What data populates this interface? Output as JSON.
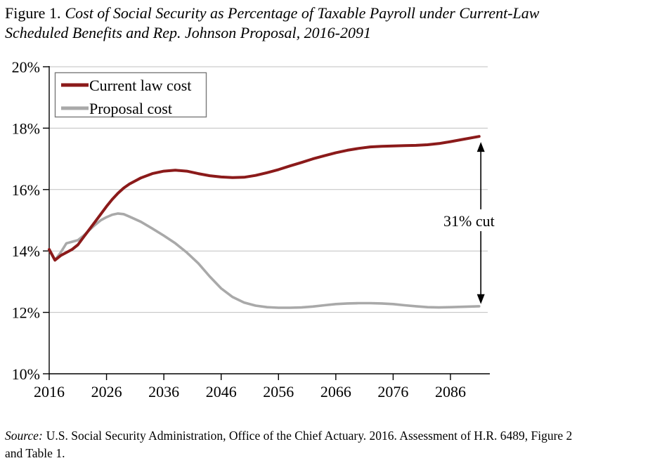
{
  "figure": {
    "title_prefix": "Figure 1.",
    "title_italic_line1": "Cost of Social Security as Percentage of Taxable Payroll under Current-Law",
    "title_italic_line2": "Scheduled Benefits and Rep. Johnson Proposal, 2016-2091",
    "source_prefix": "Source:",
    "source_line1": "U.S. Social Security Administration, Office of the Chief Actuary. 2016. Assessment of H.R. 6489, Figure 2",
    "source_line2": "and Table 1."
  },
  "chart_data": {
    "type": "line",
    "title": "Cost of Social Security as Percentage of Taxable Payroll under Current-Law Scheduled Benefits and Rep. Johnson Proposal, 2016-2091",
    "xlabel": "",
    "ylabel": "",
    "xlim": [
      2016,
      2092.5
    ],
    "ylim": [
      10,
      20
    ],
    "grid": "horizontal",
    "legend_position": "top-left",
    "x_ticks": [
      {
        "value": 2016,
        "label": "2016"
      },
      {
        "value": 2026,
        "label": "2026"
      },
      {
        "value": 2036,
        "label": "2036"
      },
      {
        "value": 2046,
        "label": "2046"
      },
      {
        "value": 2056,
        "label": "2056"
      },
      {
        "value": 2066,
        "label": "2066"
      },
      {
        "value": 2076,
        "label": "2076"
      },
      {
        "value": 2086,
        "label": "2086"
      }
    ],
    "y_ticks": [
      {
        "value": 20,
        "label": "20%"
      },
      {
        "value": 18,
        "label": "18%"
      },
      {
        "value": 16,
        "label": "16%"
      },
      {
        "value": 14,
        "label": "14%"
      },
      {
        "value": 12,
        "label": "12%"
      },
      {
        "value": 10,
        "label": "10%"
      }
    ],
    "x": [
      2016,
      2017,
      2018,
      2019,
      2020,
      2021,
      2022,
      2023,
      2024,
      2025,
      2026,
      2027,
      2028,
      2029,
      2030,
      2032,
      2034,
      2036,
      2038,
      2040,
      2042,
      2044,
      2046,
      2048,
      2050,
      2052,
      2054,
      2056,
      2058,
      2060,
      2062,
      2064,
      2066,
      2068,
      2070,
      2072,
      2074,
      2076,
      2078,
      2080,
      2082,
      2084,
      2086,
      2088,
      2091
    ],
    "series": [
      {
        "name": "Current law cost",
        "color": "#8b1a1a",
        "values": [
          14.05,
          13.7,
          13.85,
          13.95,
          14.05,
          14.2,
          14.45,
          14.7,
          14.95,
          15.2,
          15.45,
          15.68,
          15.88,
          16.05,
          16.18,
          16.38,
          16.52,
          16.6,
          16.63,
          16.6,
          16.52,
          16.45,
          16.41,
          16.39,
          16.4,
          16.46,
          16.55,
          16.65,
          16.77,
          16.88,
          17.0,
          17.1,
          17.2,
          17.28,
          17.34,
          17.39,
          17.41,
          17.42,
          17.43,
          17.44,
          17.46,
          17.5,
          17.56,
          17.63,
          17.73
        ]
      },
      {
        "name": "Proposal cost",
        "color": "#a9a9a9",
        "values": [
          14.05,
          13.7,
          13.95,
          14.25,
          14.3,
          14.35,
          14.5,
          14.68,
          14.85,
          15.0,
          15.1,
          15.18,
          15.22,
          15.2,
          15.12,
          14.95,
          14.73,
          14.5,
          14.25,
          13.95,
          13.6,
          13.17,
          12.78,
          12.5,
          12.32,
          12.22,
          12.17,
          12.15,
          12.15,
          12.16,
          12.19,
          12.23,
          12.27,
          12.29,
          12.3,
          12.3,
          12.29,
          12.27,
          12.23,
          12.2,
          12.17,
          12.16,
          12.17,
          12.18,
          12.2
        ]
      }
    ],
    "annotation": {
      "text": "31% cut",
      "arrow_x_year": 2091.3,
      "arrow_top_value": 17.55,
      "arrow_bottom_value": 12.27
    },
    "colors": {
      "gridline": "#bfbfbf",
      "axis": "#000000",
      "legend_border": "#7a7a7a",
      "annotation_arrow": "#000000"
    }
  }
}
